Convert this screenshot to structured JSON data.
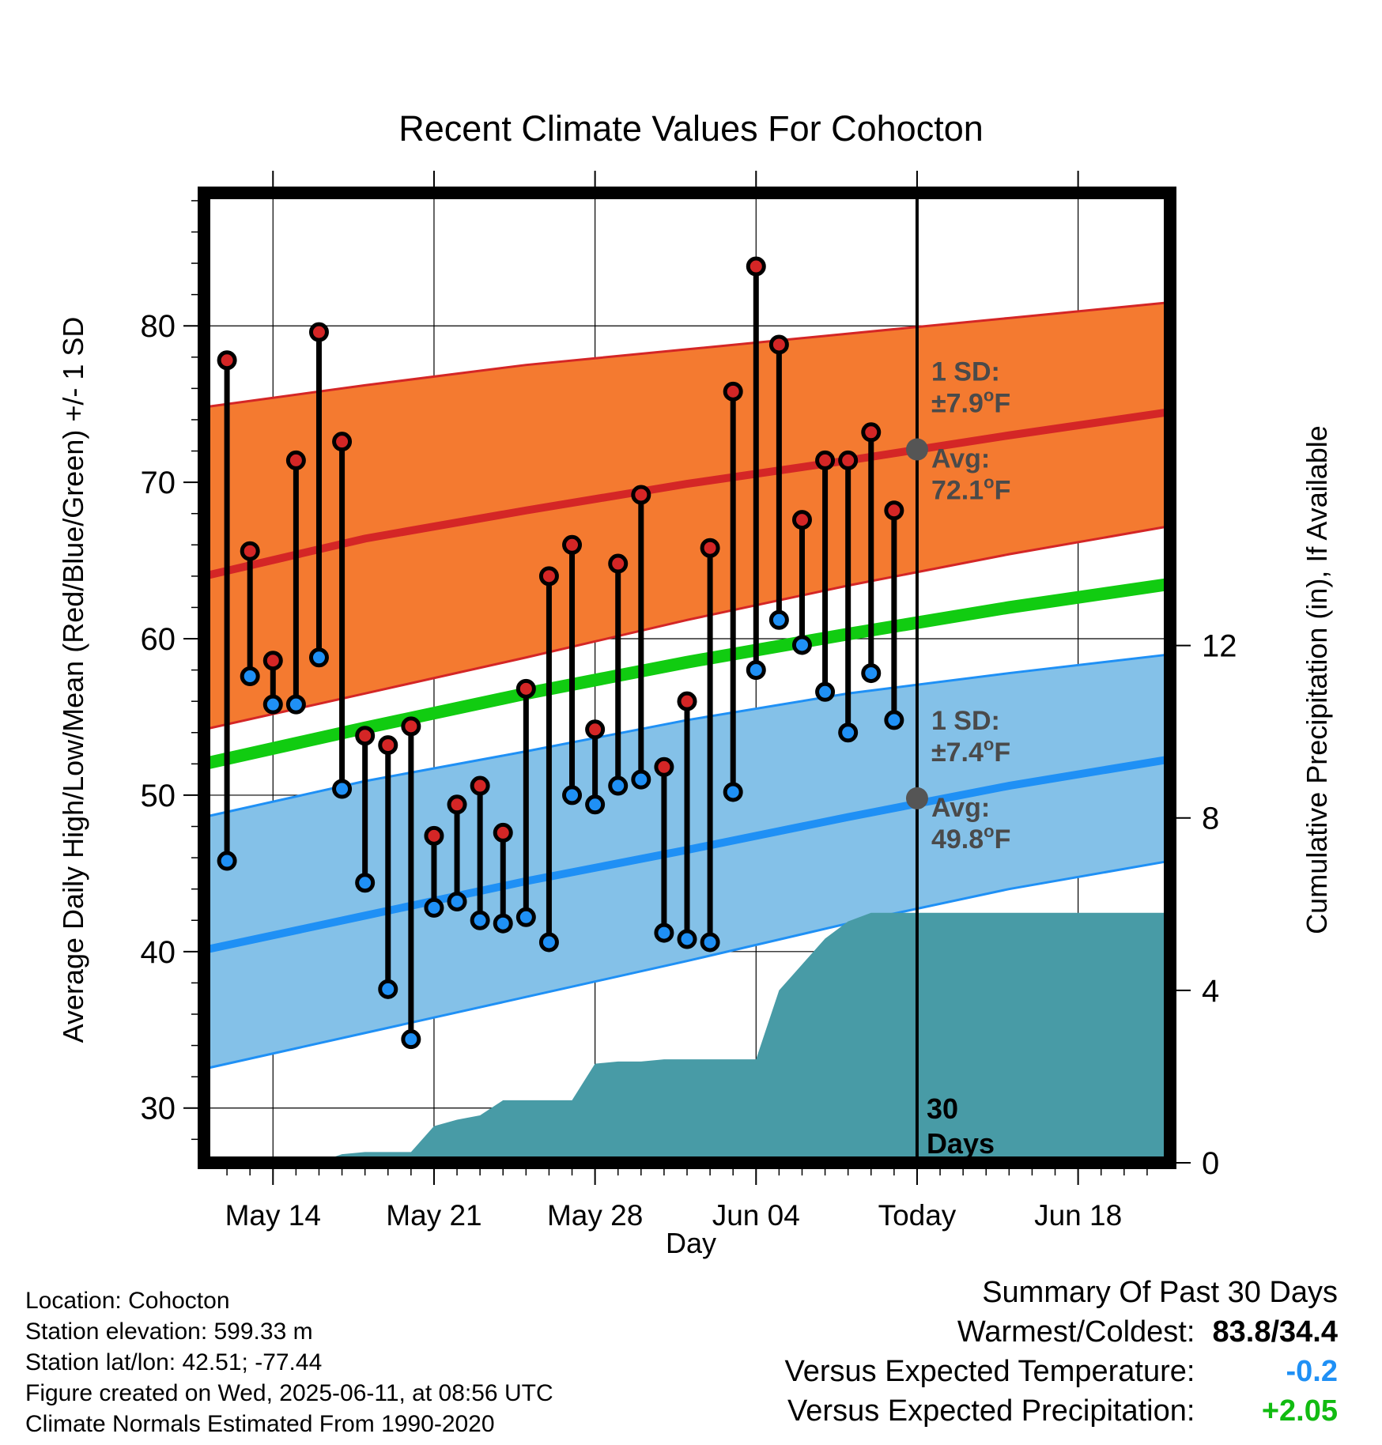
{
  "chart_data": {
    "type": "line",
    "title": "Recent Climate Values For Cohocton",
    "xlabel": "Day",
    "ylabel": "Average Daily High/Low/Mean (Red/Blue/Green) +/- 1 SD",
    "y2label": "Cumulative Precipitation (in), If Available",
    "ylim": [
      26.5,
      88.5
    ],
    "y2lim": [
      0,
      22.5
    ],
    "x_range": [
      "2025-05-11",
      "2025-06-22"
    ],
    "x_ticks": [
      {
        "date": "2025-05-14",
        "label": "May 14"
      },
      {
        "date": "2025-05-21",
        "label": "May 21"
      },
      {
        "date": "2025-05-28",
        "label": "May 28"
      },
      {
        "date": "2025-06-04",
        "label": "Jun 04"
      },
      {
        "date": "2025-06-11",
        "label": "Today"
      },
      {
        "date": "2025-06-18",
        "label": "Jun 18"
      }
    ],
    "y_ticks": [
      30,
      40,
      50,
      60,
      70,
      80
    ],
    "y2_ticks": [
      0,
      4,
      8,
      12
    ],
    "grid": true,
    "today": "2025-06-11",
    "window_label": [
      "30",
      "Days"
    ],
    "normals": {
      "dates": [
        "2025-05-11",
        "2025-05-18",
        "2025-05-25",
        "2025-06-01",
        "2025-06-08",
        "2025-06-15",
        "2025-06-22"
      ],
      "high_avg": [
        64.0,
        66.4,
        68.2,
        69.9,
        71.4,
        73.0,
        74.5
      ],
      "high_upper": [
        74.8,
        76.2,
        77.5,
        78.5,
        79.5,
        80.5,
        81.5
      ],
      "high_lower": [
        54.2,
        56.5,
        58.8,
        61.2,
        63.4,
        65.4,
        67.2
      ],
      "mean_avg": [
        52.0,
        54.3,
        56.5,
        58.5,
        60.3,
        62.0,
        63.5
      ],
      "low_avg": [
        40.1,
        42.3,
        44.5,
        46.5,
        48.6,
        50.6,
        52.3
      ],
      "low_upper": [
        48.6,
        50.9,
        52.8,
        54.8,
        56.5,
        57.8,
        59.0
      ],
      "low_lower": [
        32.5,
        34.8,
        37.1,
        39.4,
        41.8,
        44.0,
        45.8
      ]
    },
    "daily": {
      "dates": [
        "2025-05-12",
        "2025-05-13",
        "2025-05-14",
        "2025-05-15",
        "2025-05-16",
        "2025-05-17",
        "2025-05-18",
        "2025-05-19",
        "2025-05-20",
        "2025-05-21",
        "2025-05-22",
        "2025-05-23",
        "2025-05-24",
        "2025-05-25",
        "2025-05-26",
        "2025-05-27",
        "2025-05-28",
        "2025-05-29",
        "2025-05-30",
        "2025-05-31",
        "2025-06-01",
        "2025-06-02",
        "2025-06-03",
        "2025-06-04",
        "2025-06-05",
        "2025-06-06",
        "2025-06-07",
        "2025-06-08",
        "2025-06-09",
        "2025-06-10"
      ],
      "high": [
        77.8,
        65.6,
        58.6,
        71.4,
        79.6,
        72.6,
        53.8,
        53.2,
        54.4,
        47.4,
        49.4,
        50.6,
        47.6,
        56.8,
        64.0,
        66.0,
        54.2,
        64.8,
        69.2,
        51.8,
        56.0,
        65.8,
        75.8,
        83.8,
        78.8,
        67.6,
        71.4,
        71.4,
        73.2,
        68.2
      ],
      "low": [
        45.8,
        57.6,
        55.8,
        55.8,
        58.8,
        50.4,
        44.4,
        37.6,
        34.4,
        42.8,
        43.2,
        42.0,
        41.8,
        42.2,
        40.6,
        50.0,
        49.4,
        50.6,
        51.0,
        41.2,
        40.8,
        40.6,
        50.2,
        58.0,
        61.2,
        59.6,
        56.6,
        54.0,
        57.8,
        54.8
      ]
    },
    "precip_cumulative": {
      "dates": [
        "2025-05-11",
        "2025-05-15",
        "2025-05-16",
        "2025-05-17",
        "2025-05-18",
        "2025-05-19",
        "2025-05-20",
        "2025-05-21",
        "2025-05-22",
        "2025-05-23",
        "2025-05-24",
        "2025-05-25",
        "2025-05-26",
        "2025-05-27",
        "2025-05-28",
        "2025-05-29",
        "2025-05-30",
        "2025-05-31",
        "2025-06-01",
        "2025-06-02",
        "2025-06-03",
        "2025-06-04",
        "2025-06-05",
        "2025-06-06",
        "2025-06-07",
        "2025-06-08",
        "2025-06-09",
        "2025-06-10",
        "2025-06-22"
      ],
      "values": [
        0,
        0,
        0.02,
        0.2,
        0.25,
        0.25,
        0.25,
        0.85,
        1.0,
        1.1,
        1.45,
        1.45,
        1.45,
        1.45,
        2.3,
        2.35,
        2.35,
        2.4,
        2.4,
        2.4,
        2.4,
        2.4,
        4.0,
        4.6,
        5.2,
        5.6,
        5.8,
        5.8,
        5.8
      ]
    },
    "annotations": {
      "high_sd": {
        "line1": "1 SD:",
        "line2": "±7.9",
        "unit": "F"
      },
      "high_avg": {
        "line1": "Avg:",
        "line2": "72.1",
        "unit": "F",
        "value": 72.1
      },
      "low_sd": {
        "line1": "1 SD:",
        "line2": "±7.4",
        "unit": "F"
      },
      "low_avg": {
        "line1": "Avg:",
        "line2": "49.8",
        "unit": "F",
        "value": 49.8
      },
      "degree": "o"
    },
    "colors": {
      "high_band": "#f47a30",
      "high_line": "#d42626",
      "mean_line": "#11cc11",
      "low_band": "#84c1e8",
      "low_line": "#1f90f5",
      "precip": "#489ba6",
      "high_marker": "#d42626",
      "low_marker": "#1f90f5",
      "annotation_text": "#4a4a4a"
    }
  },
  "meta": {
    "location": "Location: Cohocton",
    "elevation": "Station elevation: 599.33 m",
    "latlon": "Station lat/lon: 42.51; -77.44",
    "created": "Figure created on Wed, 2025-06-11, at 08:56 UTC",
    "normals": "Climate Normals Estimated From 1990-2020"
  },
  "summary": {
    "title": "Summary Of Past 30 Days",
    "warm_cold_label": "Warmest/Coldest:",
    "warm_cold_value": "83.8/34.4",
    "temp_label": "Versus Expected Temperature:",
    "temp_value": "-0.2",
    "temp_color": "#1f90f5",
    "precip_label": "Versus Expected Precipitation:",
    "precip_value": "+2.05",
    "precip_color": "#11bb11"
  }
}
